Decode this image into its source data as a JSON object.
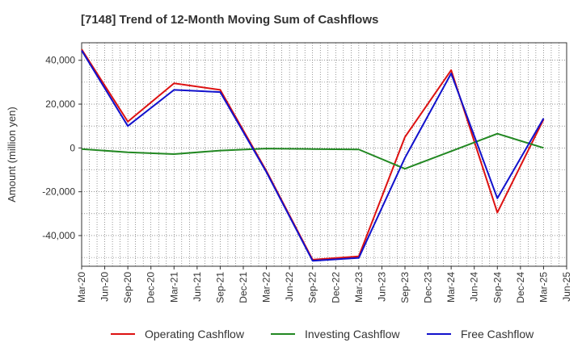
{
  "chart_data": {
    "type": "line",
    "title": "[7148]  Trend of 12-Month Moving Sum of Cashflows",
    "xlabel": "",
    "ylabel": "Amount (million yen)",
    "ylim": [
      -54000,
      48000
    ],
    "yticks": [
      40000,
      20000,
      0,
      -20000,
      -40000
    ],
    "ytick_labels": [
      "40,000",
      "20,000",
      "0",
      "-20,000",
      "-40,000"
    ],
    "x_tick_labels": [
      "Mar-20",
      "Jun-20",
      "Sep-20",
      "Dec-20",
      "Mar-21",
      "Jun-21",
      "Sep-21",
      "Dec-21",
      "Mar-22",
      "Jun-22",
      "Sep-22",
      "Dec-22",
      "Mar-23",
      "Jun-23",
      "Sep-23",
      "Dec-23",
      "Mar-24",
      "Jun-24",
      "Sep-24",
      "Dec-24",
      "Mar-25",
      "Jun-25"
    ],
    "grid": true,
    "legend_position": "bottom",
    "series": [
      {
        "name": "Operating Cashflow",
        "color": "#dd1111",
        "x": [
          "Mar-20",
          "Sep-20",
          "Mar-21",
          "Sep-21",
          "Mar-22",
          "Sep-22",
          "Mar-23",
          "Sep-23",
          "Mar-24",
          "Sep-24",
          "Mar-25"
        ],
        "values": [
          45000,
          12000,
          29500,
          26500,
          -10500,
          -51000,
          -49500,
          5000,
          35500,
          -29500,
          13000
        ]
      },
      {
        "name": "Investing Cashflow",
        "color": "#228822",
        "x": [
          "Mar-20",
          "Sep-20",
          "Mar-21",
          "Sep-21",
          "Mar-22",
          "Sep-22",
          "Mar-23",
          "Sep-23",
          "Mar-24",
          "Sep-24",
          "Mar-25"
        ],
        "values": [
          -500,
          -2000,
          -2800,
          -1200,
          -300,
          -500,
          -700,
          -9500,
          -1500,
          6500,
          0
        ]
      },
      {
        "name": "Free Cashflow",
        "color": "#1111cc",
        "x": [
          "Mar-20",
          "Sep-20",
          "Mar-21",
          "Sep-21",
          "Mar-22",
          "Sep-22",
          "Mar-23",
          "Sep-23",
          "Mar-24",
          "Sep-24",
          "Mar-25"
        ],
        "values": [
          44500,
          10000,
          26500,
          25500,
          -11000,
          -51500,
          -50200,
          -4500,
          34000,
          -23000,
          13500
        ]
      }
    ]
  }
}
